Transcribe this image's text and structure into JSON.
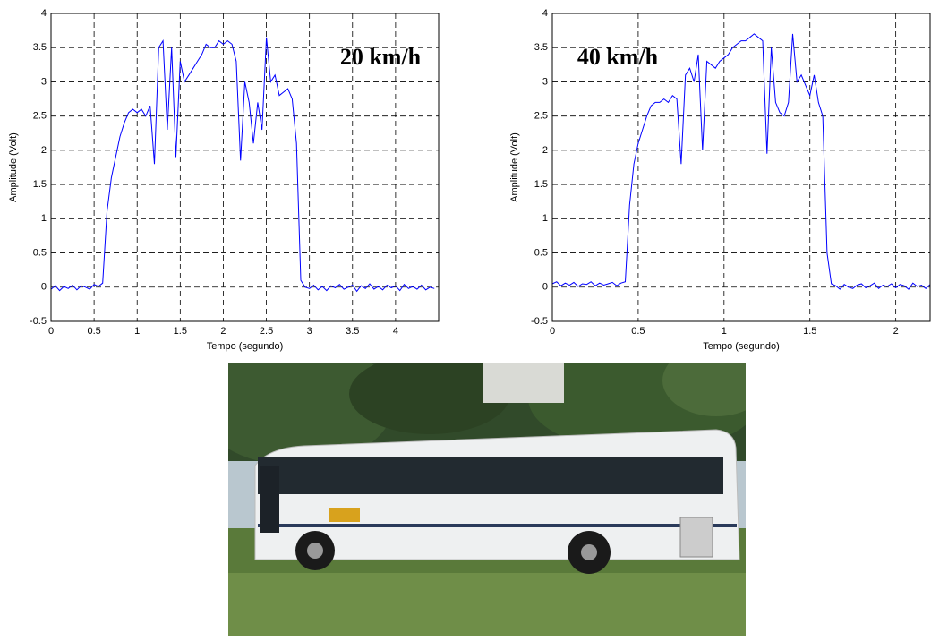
{
  "chart_data": [
    {
      "type": "line",
      "annotation": "20 km/h",
      "xlabel": "Tempo (segundo)",
      "ylabel": "Amplitude (Volt)",
      "x": [
        0,
        0.05,
        0.1,
        0.15,
        0.2,
        0.25,
        0.3,
        0.35,
        0.4,
        0.45,
        0.5,
        0.55,
        0.6,
        0.65,
        0.7,
        0.75,
        0.8,
        0.85,
        0.9,
        0.95,
        1,
        1.05,
        1.1,
        1.15,
        1.2,
        1.25,
        1.3,
        1.35,
        1.4,
        1.45,
        1.5,
        1.55,
        1.6,
        1.65,
        1.7,
        1.75,
        1.8,
        1.85,
        1.9,
        1.95,
        2,
        2.05,
        2.1,
        2.15,
        2.2,
        2.25,
        2.3,
        2.35,
        2.4,
        2.45,
        2.5,
        2.55,
        2.6,
        2.65,
        2.7,
        2.75,
        2.8,
        2.85,
        2.9,
        2.95,
        3,
        3.05,
        3.1,
        3.15,
        3.2,
        3.25,
        3.3,
        3.35,
        3.4,
        3.45,
        3.5,
        3.55,
        3.6,
        3.65,
        3.7,
        3.75,
        3.8,
        3.85,
        3.9,
        3.95,
        4,
        4.05,
        4.1,
        4.15,
        4.2,
        4.25,
        4.3,
        4.35,
        4.4,
        4.45
      ],
      "values": [
        -0.03,
        0.02,
        -0.05,
        0.01,
        -0.02,
        0.03,
        -0.04,
        0.02,
        0,
        -0.03,
        0.04,
        0.01,
        0.06,
        1.1,
        1.6,
        1.9,
        2.2,
        2.4,
        2.55,
        2.6,
        2.55,
        2.6,
        2.5,
        2.65,
        1.8,
        3.5,
        3.6,
        2.3,
        3.5,
        1.9,
        3.3,
        3,
        3.1,
        3.2,
        3.3,
        3.4,
        3.55,
        3.5,
        3.5,
        3.6,
        3.55,
        3.6,
        3.55,
        3.3,
        1.85,
        3,
        2.7,
        2.1,
        2.7,
        2.3,
        3.65,
        3,
        3.1,
        2.8,
        2.85,
        2.9,
        2.75,
        2.1,
        0.1,
        0,
        -0.02,
        0.03,
        -0.04,
        0.01,
        -0.05,
        0.02,
        -0.01,
        0.04,
        -0.03,
        0,
        0.03,
        -0.06,
        0.02,
        -0.02,
        0.05,
        -0.03,
        0.01,
        -0.04,
        0.03,
        -0.01,
        0.02,
        -0.05,
        0.04,
        -0.02,
        0.01,
        -0.03,
        0.03,
        -0.04,
        0,
        -0.02
      ],
      "color": "#0000ff",
      "xlim": [
        0,
        4.5
      ],
      "ylim": [
        -0.5,
        4
      ],
      "xticks": [
        0,
        0.5,
        1,
        1.5,
        2,
        2.5,
        3,
        3.5,
        4
      ],
      "yticks": [
        -0.5,
        0,
        0.5,
        1,
        1.5,
        2,
        2.5,
        3,
        3.5,
        4
      ],
      "grid": true
    },
    {
      "type": "line",
      "annotation": "40 km/h",
      "xlabel": "Tempo (segundo)",
      "ylabel": "Amplitude (Volt)",
      "x": [
        0,
        0.025,
        0.05,
        0.075,
        0.1,
        0.125,
        0.15,
        0.175,
        0.2,
        0.225,
        0.25,
        0.275,
        0.3,
        0.325,
        0.35,
        0.375,
        0.4,
        0.425,
        0.45,
        0.475,
        0.5,
        0.525,
        0.55,
        0.575,
        0.6,
        0.625,
        0.65,
        0.675,
        0.7,
        0.725,
        0.75,
        0.775,
        0.8,
        0.825,
        0.85,
        0.875,
        0.9,
        0.925,
        0.95,
        0.975,
        1,
        1.025,
        1.05,
        1.075,
        1.1,
        1.125,
        1.15,
        1.175,
        1.2,
        1.225,
        1.25,
        1.275,
        1.3,
        1.325,
        1.35,
        1.375,
        1.4,
        1.425,
        1.45,
        1.475,
        1.5,
        1.525,
        1.55,
        1.575,
        1.6,
        1.625,
        1.65,
        1.675,
        1.7,
        1.725,
        1.75,
        1.775,
        1.8,
        1.825,
        1.85,
        1.875,
        1.9,
        1.925,
        1.95,
        1.975,
        2,
        2.025,
        2.05,
        2.075,
        2.1,
        2.125,
        2.15,
        2.175,
        2.2
      ],
      "values": [
        0.05,
        0.08,
        0.02,
        0.06,
        0.03,
        0.07,
        0.01,
        0.05,
        0.04,
        0.08,
        0.02,
        0.06,
        0.03,
        0.05,
        0.07,
        0.02,
        0.06,
        0.08,
        1.2,
        1.8,
        2.1,
        2.3,
        2.5,
        2.65,
        2.7,
        2.7,
        2.75,
        2.7,
        2.8,
        2.75,
        1.8,
        3.1,
        3.2,
        3,
        3.4,
        2,
        3.3,
        3.25,
        3.2,
        3.3,
        3.35,
        3.4,
        3.5,
        3.55,
        3.6,
        3.6,
        3.65,
        3.7,
        3.65,
        3.6,
        1.95,
        3.5,
        2.7,
        2.55,
        2.5,
        2.7,
        3.7,
        3,
        3.1,
        2.95,
        2.8,
        3.1,
        2.7,
        2.5,
        0.5,
        0.05,
        0.02,
        -0.03,
        0.04,
        0,
        -0.02,
        0.03,
        0.05,
        -0.01,
        0.02,
        0.06,
        -0.02,
        0.03,
        0.01,
        0.05,
        -0.01,
        0.04,
        0.02,
        -0.03,
        0.06,
        0.01,
        0.03,
        -0.02,
        0.04
      ],
      "color": "#0000ff",
      "xlim": [
        0,
        2.2
      ],
      "ylim": [
        -0.5,
        4
      ],
      "xticks": [
        0,
        0.5,
        1,
        1.5,
        2
      ],
      "yticks": [
        -0.5,
        0,
        0.5,
        1,
        1.5,
        2,
        2.5,
        3,
        3.5,
        4
      ],
      "grid": true
    }
  ]
}
